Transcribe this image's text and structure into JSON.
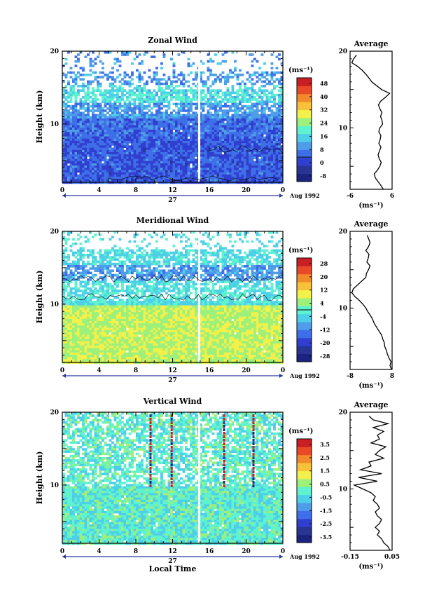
{
  "chart_data": [
    {
      "type": "heatmap",
      "title": "Zonal Wind",
      "ylabel": "Height (km)",
      "xlim": [
        0,
        24
      ],
      "ylim": [
        2,
        20
      ],
      "xticks": [
        "0",
        "4",
        "8",
        "12",
        "16",
        "20",
        "0"
      ],
      "yticks": [
        "20",
        "10"
      ],
      "day_label": "27",
      "date_label": "Aug 1992",
      "units": "(ms⁻¹)",
      "colorbar_ticks": [
        "48",
        "40",
        "32",
        "24",
        "16",
        "8",
        "0",
        "-8"
      ],
      "colorbar_range": [
        -8,
        52
      ],
      "colors": [
        "#1a237e",
        "#283593",
        "#303fcf",
        "#3f6fe8",
        "#4f9de8",
        "#4ecfe8",
        "#5ef2cf",
        "#9df07a",
        "#f2f04a",
        "#f7c23a",
        "#f08a2a",
        "#e84a28",
        "#c81e24"
      ],
      "gap_hour": 14.9,
      "profile": {
        "title": "Average",
        "xlim": [
          -6,
          6
        ],
        "xticks": [
          "-6",
          "6"
        ],
        "xlabel": "(ms⁻¹)",
        "heights": [
          2.0,
          2.5,
          3.0,
          3.5,
          4.0,
          4.5,
          5.0,
          5.5,
          6.0,
          6.5,
          7.0,
          7.5,
          8.0,
          8.5,
          9.0,
          9.5,
          10.0,
          10.5,
          11.0,
          11.5,
          12.0,
          12.5,
          13.0,
          13.5,
          14.0,
          14.5,
          15.0,
          15.5,
          16.0,
          16.5,
          17.0,
          17.5,
          18.0,
          18.5,
          19.0,
          19.5
        ],
        "values": [
          3.5,
          2.8,
          2.0,
          1.2,
          0.9,
          1.8,
          2.5,
          2.9,
          2.3,
          2.0,
          2.4,
          2.8,
          2.2,
          2.6,
          2.8,
          2.2,
          2.5,
          3.3,
          3.1,
          2.7,
          3.1,
          2.5,
          2.1,
          2.8,
          4.1,
          5.3,
          3.0,
          1.6,
          0.2,
          -0.6,
          -1.5,
          -2.5,
          -3.8,
          -5.5,
          -5.0,
          -4.2
        ]
      }
    },
    {
      "type": "heatmap",
      "title": "Meridional Wind",
      "ylabel": "Height (km)",
      "xlim": [
        0,
        24
      ],
      "ylim": [
        2,
        20
      ],
      "xticks": [
        "0",
        "4",
        "8",
        "12",
        "16",
        "20",
        "0"
      ],
      "yticks": [
        "20",
        "10"
      ],
      "day_label": "27",
      "date_label": "Aug 1992",
      "units": "(ms⁻¹)",
      "colorbar_ticks": [
        "28",
        "20",
        "12",
        "4",
        "-4",
        "-12",
        "-20",
        "-28"
      ],
      "colorbar_range": [
        -32,
        32
      ],
      "colors": [
        "#1a237e",
        "#283593",
        "#303fcf",
        "#3f6fe8",
        "#4f9de8",
        "#4ecfe8",
        "#5ef2cf",
        "#9df07a",
        "#f2f04a",
        "#f7c23a",
        "#f08a2a",
        "#e84a28",
        "#c81e24"
      ],
      "gap_hour": 14.9,
      "profile": {
        "title": "Average",
        "xlim": [
          -8,
          8
        ],
        "xticks": [
          "-8",
          "8"
        ],
        "xlabel": "(ms⁻¹)",
        "heights": [
          2.0,
          2.5,
          3.0,
          3.5,
          4.0,
          4.5,
          5.0,
          5.5,
          6.0,
          6.5,
          7.0,
          7.5,
          8.0,
          8.5,
          9.0,
          9.5,
          10.0,
          10.5,
          11.0,
          11.5,
          12.0,
          12.5,
          13.0,
          13.5,
          14.0,
          14.5,
          15.0,
          15.5,
          16.0,
          16.5,
          17.0,
          17.5,
          18.0,
          18.5,
          19.0,
          19.5
        ],
        "values": [
          7.8,
          7.2,
          7.6,
          6.8,
          6.2,
          5.8,
          5.2,
          5.0,
          4.4,
          4.0,
          3.0,
          2.1,
          1.2,
          0.6,
          -0.2,
          -1.2,
          -2.0,
          -3.1,
          -4.5,
          -6.2,
          -7.3,
          -6.8,
          -5.2,
          -3.6,
          -2.0,
          -1.8,
          -1.0,
          -0.4,
          -1.6,
          -1.1,
          -0.8,
          -2.0,
          -1.0,
          -0.4,
          -0.9,
          -1.5
        ]
      }
    },
    {
      "type": "heatmap",
      "title": "Vertical Wind",
      "ylabel": "Height (km)",
      "xlabel": "Local Time",
      "xlim": [
        0,
        24
      ],
      "ylim": [
        2,
        20
      ],
      "xticks": [
        "0",
        "4",
        "8",
        "12",
        "16",
        "20",
        "0"
      ],
      "yticks": [
        "20",
        "10"
      ],
      "day_label": "27",
      "date_label": "Aug 1992",
      "units": "(ms⁻¹)",
      "colorbar_ticks": [
        "3.5",
        "2.5",
        "1.5",
        "0.5",
        "-0.5",
        "-1.5",
        "-2.5",
        "-3.5"
      ],
      "colorbar_range": [
        -4,
        4
      ],
      "colors": [
        "#1a237e",
        "#283593",
        "#303fcf",
        "#3f6fe8",
        "#4f9de8",
        "#4ecfe8",
        "#5ef2cf",
        "#9df07a",
        "#f2f04a",
        "#f7c23a",
        "#f08a2a",
        "#e84a28",
        "#c81e24"
      ],
      "gap_hour": 14.9,
      "profile": {
        "title": "Average",
        "xlim": [
          -0.15,
          0.05
        ],
        "xticks": [
          "-0.15",
          "0.05"
        ],
        "xlabel": "(ms⁻¹)",
        "heights": [
          2.0,
          2.5,
          3.0,
          3.5,
          4.0,
          4.5,
          5.0,
          5.5,
          6.0,
          6.5,
          7.0,
          7.5,
          8.0,
          8.5,
          9.0,
          9.5,
          10.0,
          10.5,
          11.0,
          11.5,
          12.0,
          12.5,
          13.0,
          13.5,
          14.0,
          14.5,
          15.0,
          15.5,
          16.0,
          16.5,
          17.0,
          17.5,
          18.0,
          18.5,
          19.0,
          19.5
        ],
        "values": [
          0.04,
          0.03,
          0.01,
          0.0,
          -0.02,
          -0.01,
          -0.03,
          -0.01,
          0.0,
          -0.02,
          -0.03,
          -0.01,
          -0.02,
          -0.04,
          -0.03,
          -0.05,
          -0.09,
          -0.13,
          -0.02,
          -0.11,
          0.0,
          -0.1,
          -0.05,
          -0.06,
          0.01,
          -0.03,
          -0.01,
          0.02,
          -0.05,
          -0.01,
          -0.02,
          0.01,
          -0.04,
          0.03,
          -0.04,
          -0.06
        ]
      }
    }
  ]
}
